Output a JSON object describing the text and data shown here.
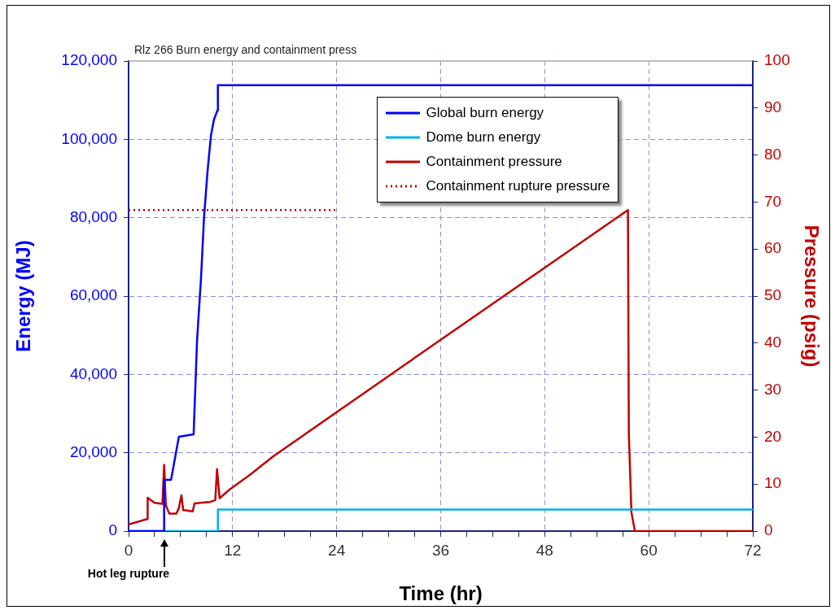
{
  "chart_data": {
    "type": "line",
    "title": "Rlz 266 Burn energy and containment press",
    "xlabel": "Time (hr)",
    "ylabel": "Energy (MJ)",
    "y2label": "Pressure (psig)",
    "xlim": [
      0,
      72
    ],
    "xticks": [
      0,
      {
        "value": 3,
        "label": null
      },
      {
        "value": 6,
        "label": null
      },
      {
        "value": 9,
        "label": null
      },
      12,
      {
        "value": 15,
        "label": null
      },
      {
        "value": 18,
        "label": null
      },
      {
        "value": 21,
        "label": null
      },
      24,
      {
        "value": 27,
        "label": null
      },
      {
        "value": 30,
        "label": null
      },
      {
        "value": 33,
        "label": null
      },
      36,
      {
        "value": 39,
        "label": null
      },
      {
        "value": 42,
        "label": null
      },
      {
        "value": 45,
        "label": null
      },
      48,
      {
        "value": 51,
        "label": null
      },
      {
        "value": 54,
        "label": null
      },
      {
        "value": 57,
        "label": null
      },
      60,
      {
        "value": 63,
        "label": null
      },
      {
        "value": 66,
        "label": null
      },
      {
        "value": 69,
        "label": null
      },
      72
    ],
    "ylim": [
      0,
      120000
    ],
    "yticks": [
      0,
      {
        "value": 20000,
        "label": "20,000"
      },
      {
        "value": 40000,
        "label": "40,000"
      },
      {
        "value": 60000,
        "label": "60,000"
      },
      {
        "value": 80000,
        "label": "80,000"
      },
      {
        "value": 100000,
        "label": "100,000"
      },
      {
        "value": 120000,
        "label": "120,000"
      }
    ],
    "y2lim": [
      0,
      100
    ],
    "y2ticks": [
      0,
      10,
      20,
      30,
      40,
      50,
      60,
      70,
      80,
      90,
      100
    ],
    "grid": true,
    "legend": "top",
    "marker": "none",
    "series": [
      {
        "name": "Global burn energy",
        "color": "#0000ff",
        "x": [
          0,
          4.1,
          4.1,
          4.9,
          5.8,
          7.5,
          7.9,
          8.35,
          8.7,
          9.1,
          9.5,
          9.84,
          10.25,
          10.3,
          72
        ],
        "values": [
          0,
          0,
          13100,
          13100,
          24100,
          24700,
          48800,
          64400,
          80000,
          91700,
          101000,
          105000,
          107400,
          113800,
          113800
        ]
      },
      {
        "name": "Dome burn energy",
        "color": "#00b0f0",
        "x": [
          0,
          10.3,
          10.3,
          72
        ],
        "values": [
          0,
          0,
          5500,
          5500
        ]
      },
      {
        "name": "Containment pressure",
        "color": "#c00000",
        "axis": "y2",
        "x": [
          0,
          2.2,
          2.2,
          3.0,
          3.9,
          4.1,
          4.3,
          4.7,
          5.5,
          5.8,
          6.1,
          6.3,
          7.4,
          7.6,
          9.4,
          10.0,
          10.2,
          10.5,
          11.7,
          14.1,
          16.6,
          24,
          36,
          57.6,
          57.7,
          58.0,
          58.4,
          72
        ],
        "values": [
          1.4,
          2.6,
          7.1,
          6.0,
          5.8,
          14.1,
          5.5,
          3.7,
          3.7,
          4.9,
          7.6,
          4.5,
          4.2,
          5.9,
          6.2,
          6.6,
          13.2,
          7.0,
          8.9,
          12.1,
          15.8,
          25.3,
          40.7,
          68.3,
          20.8,
          4,
          0,
          0
        ]
      },
      {
        "name": "Containment rupture pressure",
        "color": "#c00000",
        "axis": "y2",
        "line_style": "dotted",
        "x": [
          0,
          24
        ],
        "values": [
          68.3,
          68.3
        ]
      }
    ],
    "annotations": [
      "Hot leg rupture"
    ]
  }
}
